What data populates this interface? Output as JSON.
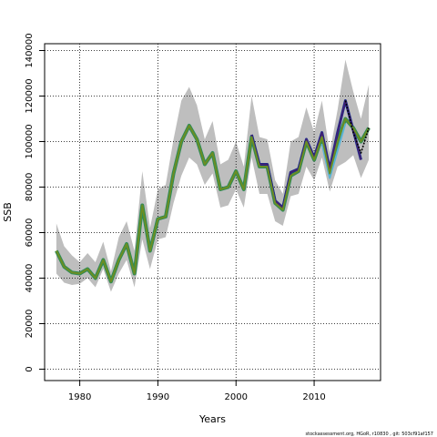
{
  "chart_data": {
    "type": "line",
    "xlabel": "Years",
    "ylabel": "SSB",
    "xlim": [
      1975.5,
      2018.5
    ],
    "ylim": [
      -5000,
      143000
    ],
    "xticks": [
      1980,
      1990,
      2000,
      2010
    ],
    "yticks": [
      0,
      20000,
      40000,
      60000,
      80000,
      100000,
      120000,
      140000
    ],
    "grid": true,
    "grid_style": "dotted",
    "legend": "none",
    "colors": {
      "band": "#bebebe",
      "main_fill": "#6b8e23",
      "main_outline": "#2e8b57",
      "recent_main": "#1e2a8a",
      "recent_alt": "#4a1e6e",
      "recent_light": "#5ab4d6",
      "proj": "#000000",
      "grid": "#000000"
    },
    "band": {
      "years": [
        1977,
        1978,
        1979,
        1980,
        1981,
        1982,
        1983,
        1984,
        1985,
        1986,
        1987,
        1988,
        1989,
        1990,
        1991,
        1992,
        1993,
        1994,
        1995,
        1996,
        1997,
        1998,
        1999,
        2000,
        2001,
        2002,
        2003,
        2004,
        2005,
        2006,
        2007,
        2008,
        2009,
        2010,
        2011,
        2012,
        2013,
        2014,
        2015,
        2016,
        2017
      ],
      "lower": [
        42000,
        38000,
        37000,
        37500,
        40000,
        36000,
        44000,
        34000,
        42000,
        48000,
        36000,
        57000,
        44000,
        57000,
        58000,
        73000,
        85000,
        93000,
        90000,
        81000,
        86000,
        71000,
        72000,
        79000,
        71000,
        93000,
        77000,
        77000,
        65000,
        63000,
        76000,
        77000,
        89000,
        83000,
        93000,
        78000,
        89000,
        91000,
        94000,
        84000,
        92000
      ],
      "upper": [
        64000,
        54000,
        50000,
        47000,
        51000,
        47000,
        56000,
        43000,
        58000,
        65000,
        52000,
        87000,
        62000,
        79000,
        81000,
        101000,
        118000,
        124000,
        116000,
        101000,
        109000,
        90000,
        92000,
        100000,
        89000,
        120000,
        102000,
        101000,
        83000,
        77000,
        100000,
        102000,
        115000,
        104000,
        118000,
        95000,
        114000,
        136000,
        122000,
        110000,
        125000
      ]
    },
    "series": [
      {
        "years": [
          1977,
          1978,
          1979,
          1980,
          1981,
          1982,
          1983,
          1984,
          1985,
          1986,
          1987,
          1988,
          1989,
          1990,
          1991,
          1992,
          1993,
          1994,
          1995,
          1996,
          1997,
          1998,
          1999,
          2000,
          2001,
          2002,
          2003,
          2004,
          2005,
          2006,
          2007,
          2008,
          2009,
          2010,
          2011,
          2012,
          2013,
          2014,
          2015,
          2016,
          2017
        ],
        "values": [
          52000,
          45000,
          42500,
          42000,
          44000,
          40000,
          48000,
          38500,
          48000,
          55000,
          42000,
          72000,
          52000,
          66000,
          67000,
          86000,
          100000,
          107000,
          101000,
          90000,
          95000,
          79000,
          80000,
          87000,
          79000,
          102000,
          89000,
          89000,
          73000,
          70000,
          85000,
          87000,
          100000,
          92000,
          102000,
          86000,
          100000,
          110000,
          106000,
          100000,
          106000
        ]
      },
      {
        "years": [
          2002,
          2003,
          2004,
          2005,
          2006,
          2007,
          2008,
          2009,
          2010,
          2011,
          2012,
          2013,
          2014,
          2015,
          2016
        ],
        "values": [
          103000,
          90000,
          90000,
          74000,
          71000,
          86500,
          88000,
          101000,
          93000,
          104000,
          88000,
          104000,
          118000,
          105000,
          92000
        ]
      },
      {
        "years": [
          2011,
          2012,
          2013,
          2014
        ],
        "values": [
          99000,
          84000,
          96000,
          108000
        ]
      },
      {
        "years": [
          2014,
          2015,
          2016,
          2017
        ],
        "values": [
          118000,
          104000,
          95000,
          106000
        ]
      }
    ]
  },
  "footer": {
    "credit": "stockassessment.org, HGoR, r10830 , git: 503cf91af157"
  }
}
